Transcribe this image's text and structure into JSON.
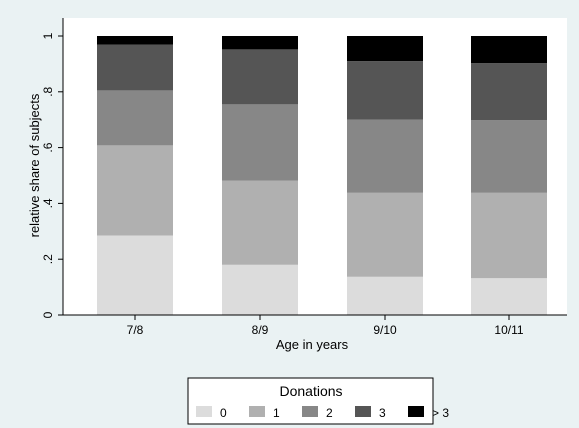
{
  "chart_data": {
    "type": "bar",
    "stacked": true,
    "categories": [
      "7/8",
      "8/9",
      "9/10",
      "10/11"
    ],
    "series": [
      {
        "name": "0",
        "values": [
          0.285,
          0.18,
          0.137,
          0.132
        ],
        "color": "#dcdcdc"
      },
      {
        "name": "1",
        "values": [
          0.323,
          0.302,
          0.301,
          0.306
        ],
        "color": "#b0b0b0"
      },
      {
        "name": "2",
        "values": [
          0.197,
          0.273,
          0.262,
          0.26
        ],
        "color": "#878787"
      },
      {
        "name": "3",
        "values": [
          0.164,
          0.197,
          0.21,
          0.205
        ],
        "color": "#555555"
      },
      {
        "name": "> 3",
        "values": [
          0.031,
          0.048,
          0.09,
          0.097
        ],
        "color": "#000000"
      }
    ],
    "xlabel": "Age in years",
    "ylabel": "relative share of subjects",
    "ylim": [
      0,
      1
    ],
    "yticks": [
      0,
      0.2,
      0.4,
      0.6,
      0.8,
      1
    ],
    "ytick_labels": [
      "0",
      ".2",
      ".4",
      ".6",
      ".8",
      "1"
    ],
    "grid": false,
    "legend": {
      "title": "Donations",
      "position": "bottom"
    }
  }
}
